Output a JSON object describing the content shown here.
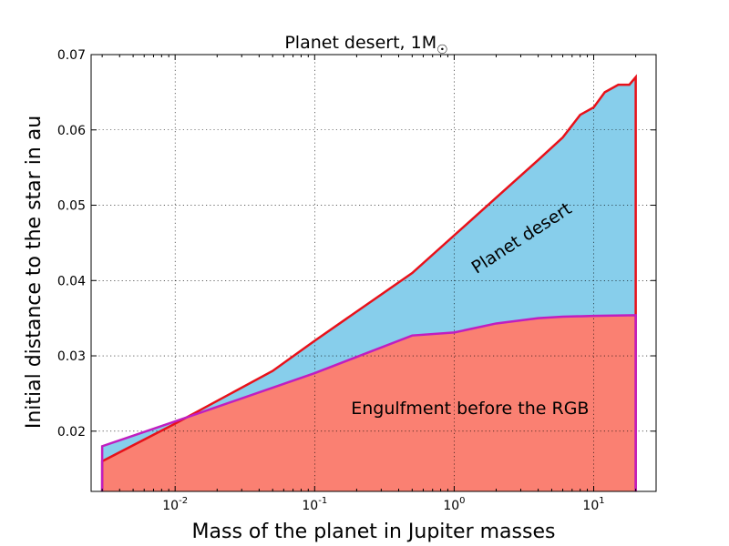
{
  "chart_data": {
    "type": "area",
    "title": "Planet desert, 1M",
    "title_symbol": "☉",
    "xlabel": "Mass of the planet in Jupiter masses",
    "ylabel": "Initial distance to the star in au",
    "xscale": "log",
    "xlim": [
      0.0025,
      28
    ],
    "ylim": [
      0.012,
      0.07
    ],
    "grid": true,
    "x_tick_labels": [
      {
        "base": "10",
        "exp": "-2",
        "value": 0.01
      },
      {
        "base": "10",
        "exp": "-1",
        "value": 0.1
      },
      {
        "base": "10",
        "exp": "0",
        "value": 1
      },
      {
        "base": "10",
        "exp": "1",
        "value": 10
      }
    ],
    "y_ticks": [
      0.02,
      0.03,
      0.04,
      0.05,
      0.06,
      0.07
    ],
    "y_tick_labels": [
      "0.02",
      "0.03",
      "0.04",
      "0.05",
      "0.06",
      "0.07"
    ],
    "series": [
      {
        "x": [
          0.003,
          0.01,
          0.05,
          0.1,
          0.5,
          1,
          2,
          4,
          6,
          8,
          10,
          12,
          15,
          18,
          20,
          20
        ],
        "y": [
          0.016,
          0.021,
          0.028,
          0.032,
          0.041,
          0.046,
          0.051,
          0.056,
          0.059,
          0.062,
          0.063,
          0.065,
          0.066,
          0.066,
          0.067,
          0.0352
        ],
        "color": "#e8111a"
      },
      {
        "x": [
          0.003,
          0.01,
          0.1,
          0.5,
          1,
          2,
          4,
          6,
          10,
          20
        ],
        "y": [
          0.018,
          0.0213,
          0.0277,
          0.0327,
          0.0331,
          0.0343,
          0.035,
          0.0352,
          0.0353,
          0.0354
        ],
        "color": "#c01ec0"
      }
    ],
    "fill_colors": {
      "engulfment": "#fa8072",
      "desert": "#d3d3d3",
      "lower_region": "#87ceeb"
    },
    "annotations": [
      {
        "text": "Planet desert",
        "x": 3.2,
        "y": 0.045,
        "rotation": -33
      },
      {
        "text": "Engulfment before the RGB",
        "x": 1.3,
        "y": 0.0223,
        "rotation": 0
      }
    ]
  }
}
